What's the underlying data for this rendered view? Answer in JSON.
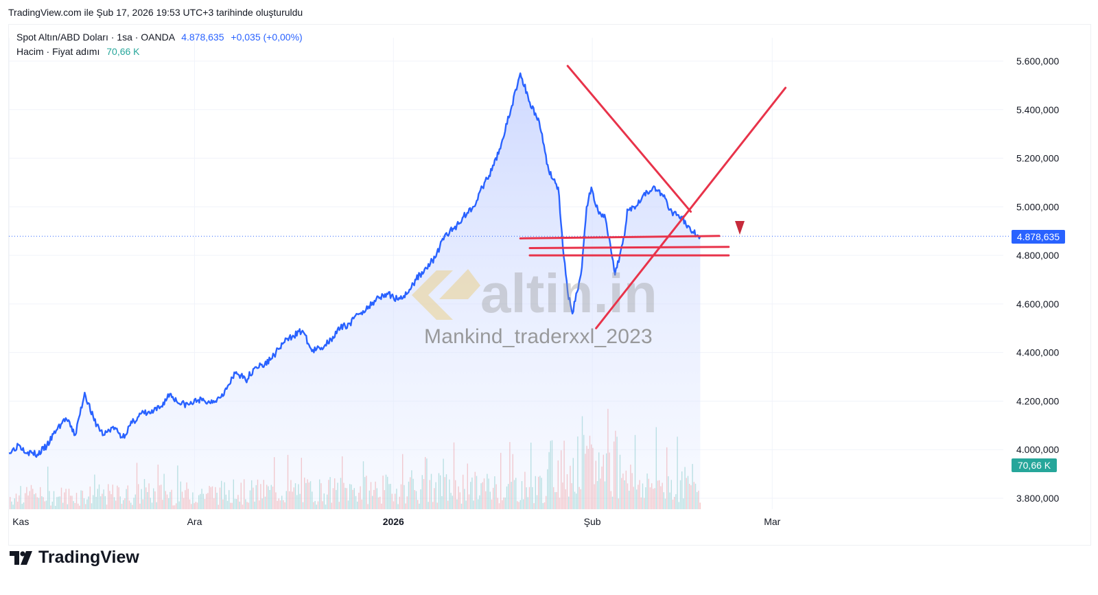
{
  "header": {
    "created_text": "TradingView.com ile Şub 17, 2026 19:53 UTC+3 tarihinde oluşturuldu"
  },
  "legend": {
    "symbol": "Spot Altın/ABD Doları · 1sa · OANDA",
    "last": "4.878,635",
    "change": "+0,035 (+0,00%)",
    "volume_label": "Hacim · Fiyat adımı",
    "volume_value": "70,66 K"
  },
  "badges": {
    "price": "4.878,635",
    "volume": "70,66 K"
  },
  "watermark": {
    "logo_text": "altin.in",
    "user": "Mankind_traderxxl_2023"
  },
  "brand": {
    "name": "TradingView"
  },
  "colors": {
    "line": "#2962ff",
    "area_top": "#c9d6ff",
    "drawing": "#e8334a",
    "vol_up": "#26a69a",
    "vol_down": "#ef5350",
    "watermark_gold": "#e9cf8c"
  },
  "chart_data": {
    "type": "area",
    "title": "Spot Altın/ABD Doları · 1sa · OANDA",
    "y_ticks": [
      "5.600,000",
      "5.400,000",
      "5.200,000",
      "5.000,000",
      "4.800,000",
      "4.600,000",
      "4.400,000",
      "4.200,000",
      "4.000,000",
      "3.800,000"
    ],
    "y_tick_values": [
      5600,
      5400,
      5200,
      5000,
      4800,
      4600,
      4400,
      4200,
      4000,
      3800
    ],
    "ylim": [
      3750,
      5700
    ],
    "x_ticks": [
      {
        "label": "Kas",
        "bold": false,
        "t": 0.02
      },
      {
        "label": "Ara",
        "bold": false,
        "t": 19.6
      },
      {
        "label": "2026",
        "bold": true,
        "t": 40.6
      },
      {
        "label": "Şub",
        "bold": false,
        "t": 61.6
      },
      {
        "label": "Mar",
        "bold": false,
        "t": 80.6
      }
    ],
    "xlim": [
      0,
      105
    ],
    "series": [
      {
        "x": [
          0,
          1,
          2,
          3,
          4,
          5,
          6,
          7,
          8,
          9,
          10,
          11,
          12,
          13,
          14,
          15,
          16,
          17,
          18,
          19,
          20,
          21,
          22,
          23,
          24,
          25,
          26,
          27,
          28,
          29,
          30,
          31,
          32,
          33,
          34,
          35,
          36,
          37,
          38,
          39,
          40,
          41,
          42,
          43,
          44,
          45,
          46,
          47,
          48,
          49,
          50,
          51,
          52,
          53,
          54,
          55,
          56,
          57,
          58,
          58.5,
          59,
          59.5,
          60,
          60.5,
          61,
          61.5,
          62,
          62.5,
          63,
          64,
          65,
          65.3,
          66,
          67,
          68,
          69,
          70,
          71,
          72,
          73
        ],
        "y": [
          3985,
          4020,
          3990,
          3980,
          4015,
          4080,
          4130,
          4060,
          4235,
          4120,
          4060,
          4095,
          4050,
          4110,
          4150,
          4150,
          4175,
          4230,
          4190,
          4185,
          4205,
          4195,
          4210,
          4250,
          4320,
          4285,
          4340,
          4350,
          4390,
          4440,
          4470,
          4490,
          4405,
          4420,
          4455,
          4500,
          4520,
          4560,
          4590,
          4630,
          4640,
          4620,
          4640,
          4700,
          4750,
          4790,
          4880,
          4910,
          4960,
          5000,
          5080,
          5150,
          5260,
          5400,
          5550,
          5430,
          5350,
          5150,
          5080,
          4830,
          4650,
          4560,
          4650,
          4750,
          5000,
          5080,
          5000,
          4970,
          4950,
          4720,
          4880,
          4990,
          5000,
          5050,
          5080,
          5050,
          4980,
          4960,
          4900,
          4878
        ]
      }
    ],
    "annotations": [
      {
        "type": "trendline",
        "from": [
          59,
          5580
        ],
        "to": [
          72,
          4980
        ],
        "label": ""
      },
      {
        "type": "trendline",
        "from": [
          62,
          4500
        ],
        "to": [
          82,
          5490
        ],
        "label": ""
      },
      {
        "type": "hline",
        "from": [
          54,
          4870
        ],
        "to": [
          75,
          4880
        ],
        "label": ""
      },
      {
        "type": "hline",
        "from": [
          55,
          4830
        ],
        "to": [
          76,
          4835
        ],
        "label": ""
      },
      {
        "type": "hline",
        "from": [
          55,
          4800
        ],
        "to": [
          76,
          4800
        ],
        "label": ""
      }
    ],
    "current_price": 4878.635,
    "volume_last": "70,66 K",
    "grid": true
  }
}
